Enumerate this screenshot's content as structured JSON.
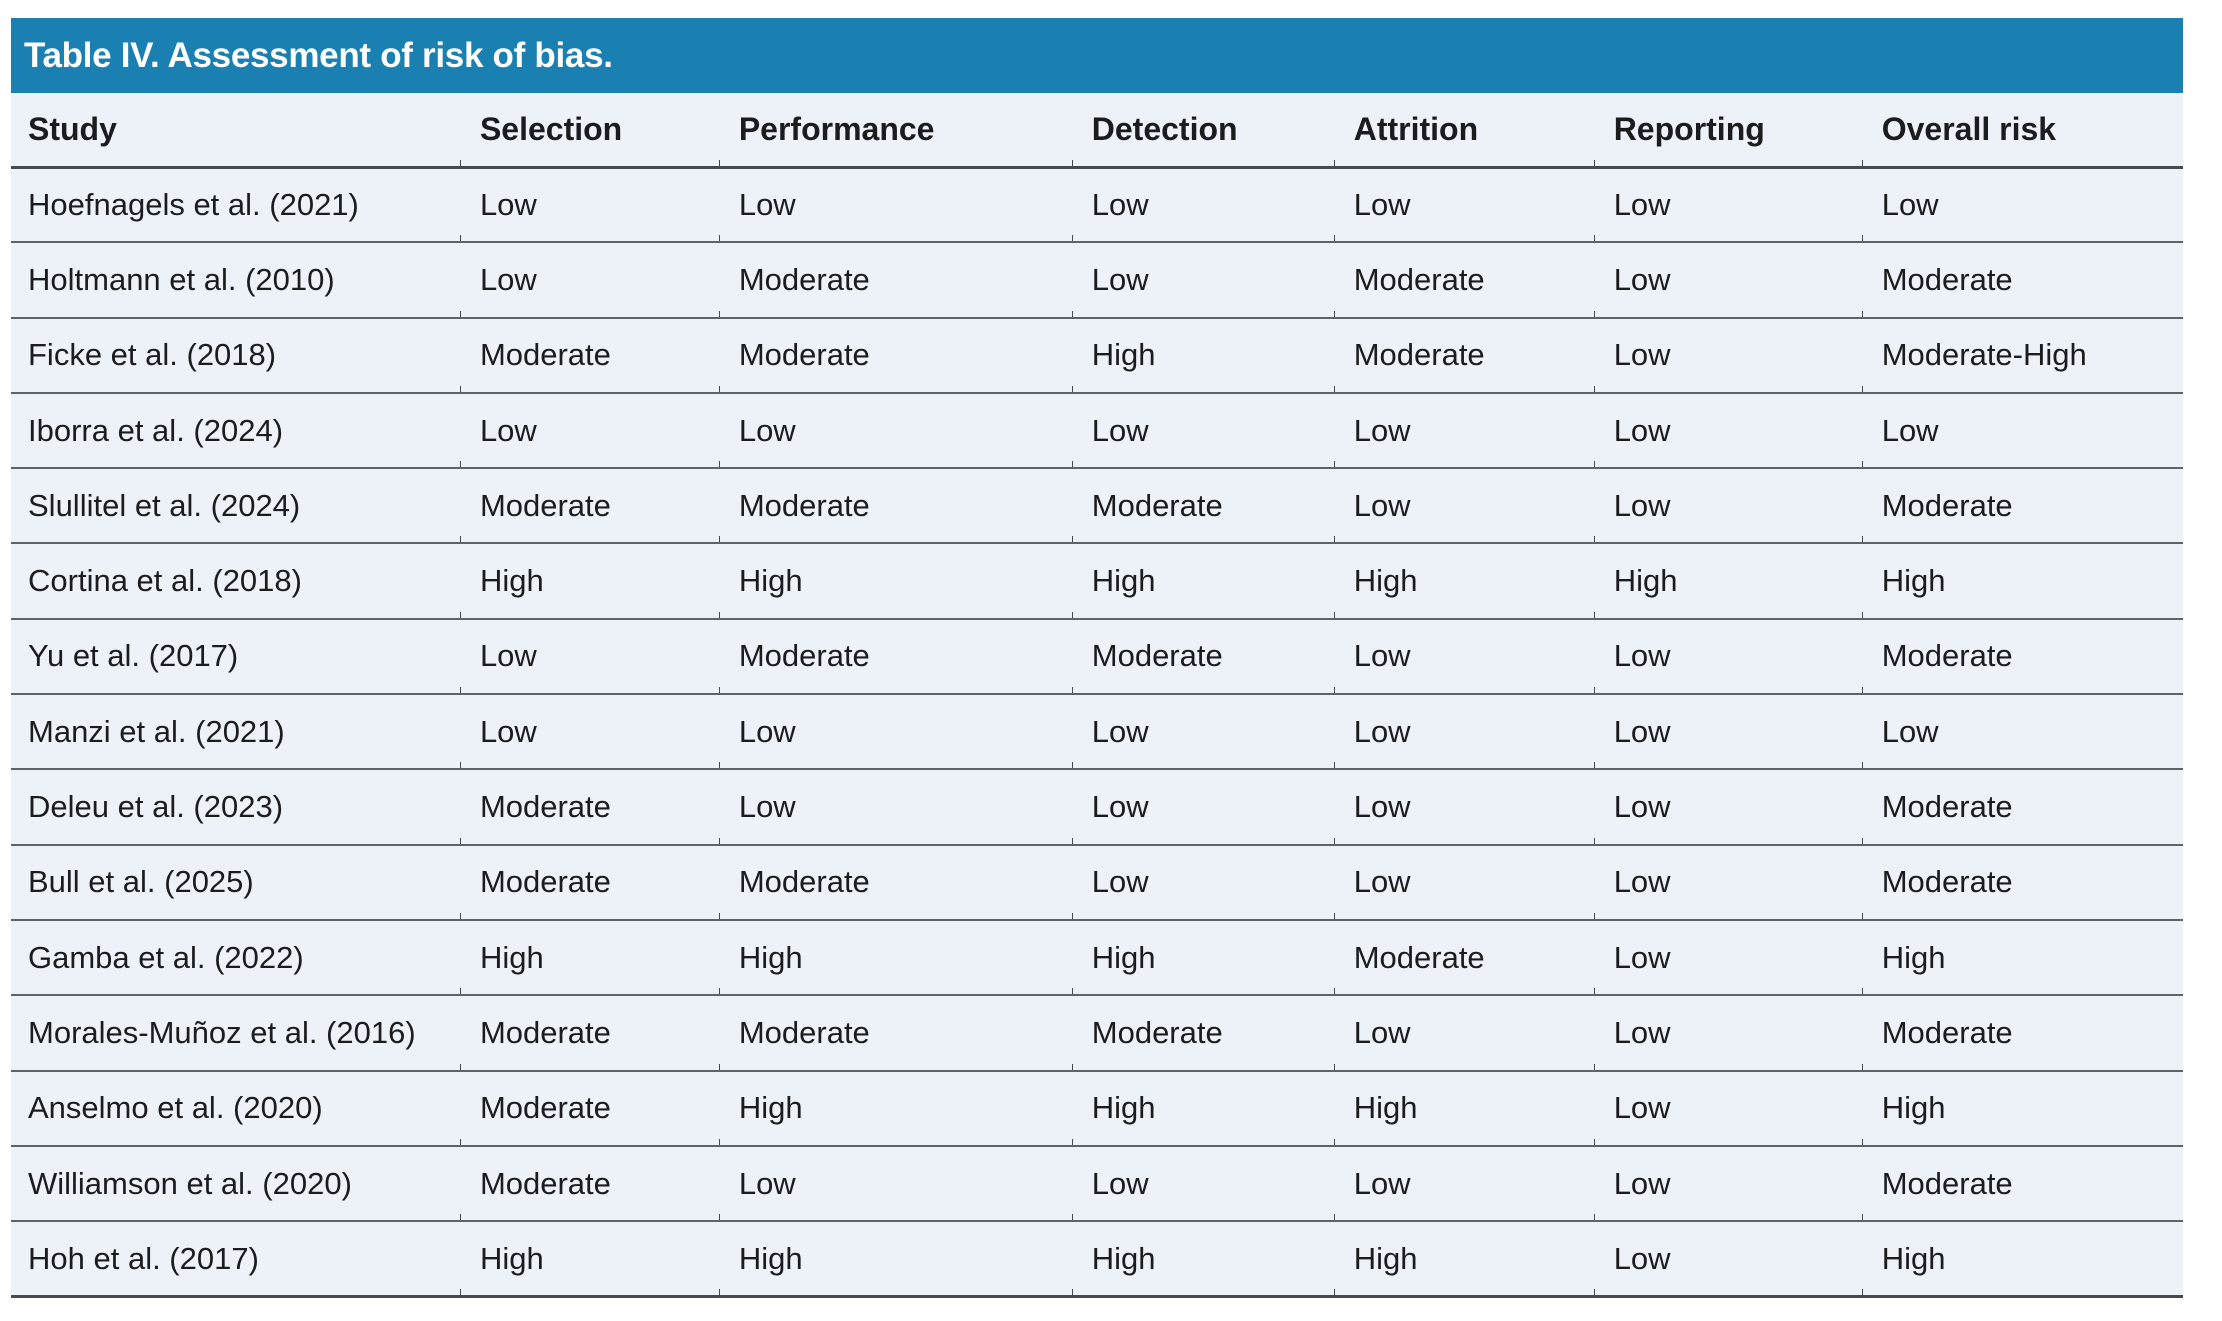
{
  "title": "Table IV. Assessment of risk of bias.",
  "columns": [
    "Study",
    "Selection",
    "Performance",
    "Detection",
    "Attrition",
    "Reporting",
    "Overall risk"
  ],
  "rows": [
    {
      "study": "Hoefnagels et al. (2021)",
      "selection": "Low",
      "performance": "Low",
      "detection": "Low",
      "attrition": "Low",
      "reporting": "Low",
      "overall": "Low"
    },
    {
      "study": "Holtmann et al. (2010)",
      "selection": "Low",
      "performance": "Moderate",
      "detection": "Low",
      "attrition": "Moderate",
      "reporting": "Low",
      "overall": "Moderate"
    },
    {
      "study": "Ficke et al. (2018)",
      "selection": "Moderate",
      "performance": "Moderate",
      "detection": "High",
      "attrition": "Moderate",
      "reporting": "Low",
      "overall": "Moderate-High"
    },
    {
      "study": "Iborra et al. (2024)",
      "selection": "Low",
      "performance": "Low",
      "detection": "Low",
      "attrition": "Low",
      "reporting": "Low",
      "overall": "Low"
    },
    {
      "study": "Slullitel et al. (2024)",
      "selection": "Moderate",
      "performance": "Moderate",
      "detection": "Moderate",
      "attrition": "Low",
      "reporting": "Low",
      "overall": "Moderate"
    },
    {
      "study": "Cortina et al. (2018)",
      "selection": "High",
      "performance": "High",
      "detection": "High",
      "attrition": "High",
      "reporting": "High",
      "overall": "High"
    },
    {
      "study": "Yu et al. (2017)",
      "selection": "Low",
      "performance": "Moderate",
      "detection": "Moderate",
      "attrition": "Low",
      "reporting": "Low",
      "overall": "Moderate"
    },
    {
      "study": "Manzi et al. (2021)",
      "selection": "Low",
      "performance": "Low",
      "detection": "Low",
      "attrition": "Low",
      "reporting": "Low",
      "overall": "Low"
    },
    {
      "study": "Deleu et al. (2023)",
      "selection": "Moderate",
      "performance": "Low",
      "detection": "Low",
      "attrition": "Low",
      "reporting": "Low",
      "overall": "Moderate"
    },
    {
      "study": "Bull et al. (2025)",
      "selection": "Moderate",
      "performance": "Moderate",
      "detection": "Low",
      "attrition": "Low",
      "reporting": "Low",
      "overall": "Moderate"
    },
    {
      "study": "Gamba et al. (2022)",
      "selection": "High",
      "performance": "High",
      "detection": "High",
      "attrition": "Moderate",
      "reporting": "Low",
      "overall": "High"
    },
    {
      "study": "Morales-Muñoz et al. (2016)",
      "selection": "Moderate",
      "performance": "Moderate",
      "detection": "Moderate",
      "attrition": "Low",
      "reporting": "Low",
      "overall": "Moderate"
    },
    {
      "study": "Anselmo et al. (2020)",
      "selection": "Moderate",
      "performance": "High",
      "detection": "High",
      "attrition": "High",
      "reporting": "Low",
      "overall": "High"
    },
    {
      "study": "Williamson et al. (2020)",
      "selection": "Moderate",
      "performance": "Low",
      "detection": "Low",
      "attrition": "Low",
      "reporting": "Low",
      "overall": "Moderate"
    },
    {
      "study": "Hoh et al. (2017)",
      "selection": "High",
      "performance": "High",
      "detection": "High",
      "attrition": "High",
      "reporting": "Low",
      "overall": "High"
    }
  ],
  "colors": {
    "accent_blue": "#1a80b1",
    "table_background": "#edf1f8",
    "rule_gray": "#5f6368",
    "rule_dark": "#46494d",
    "text": "#1b1c1e",
    "title_text": "#ffffff"
  }
}
